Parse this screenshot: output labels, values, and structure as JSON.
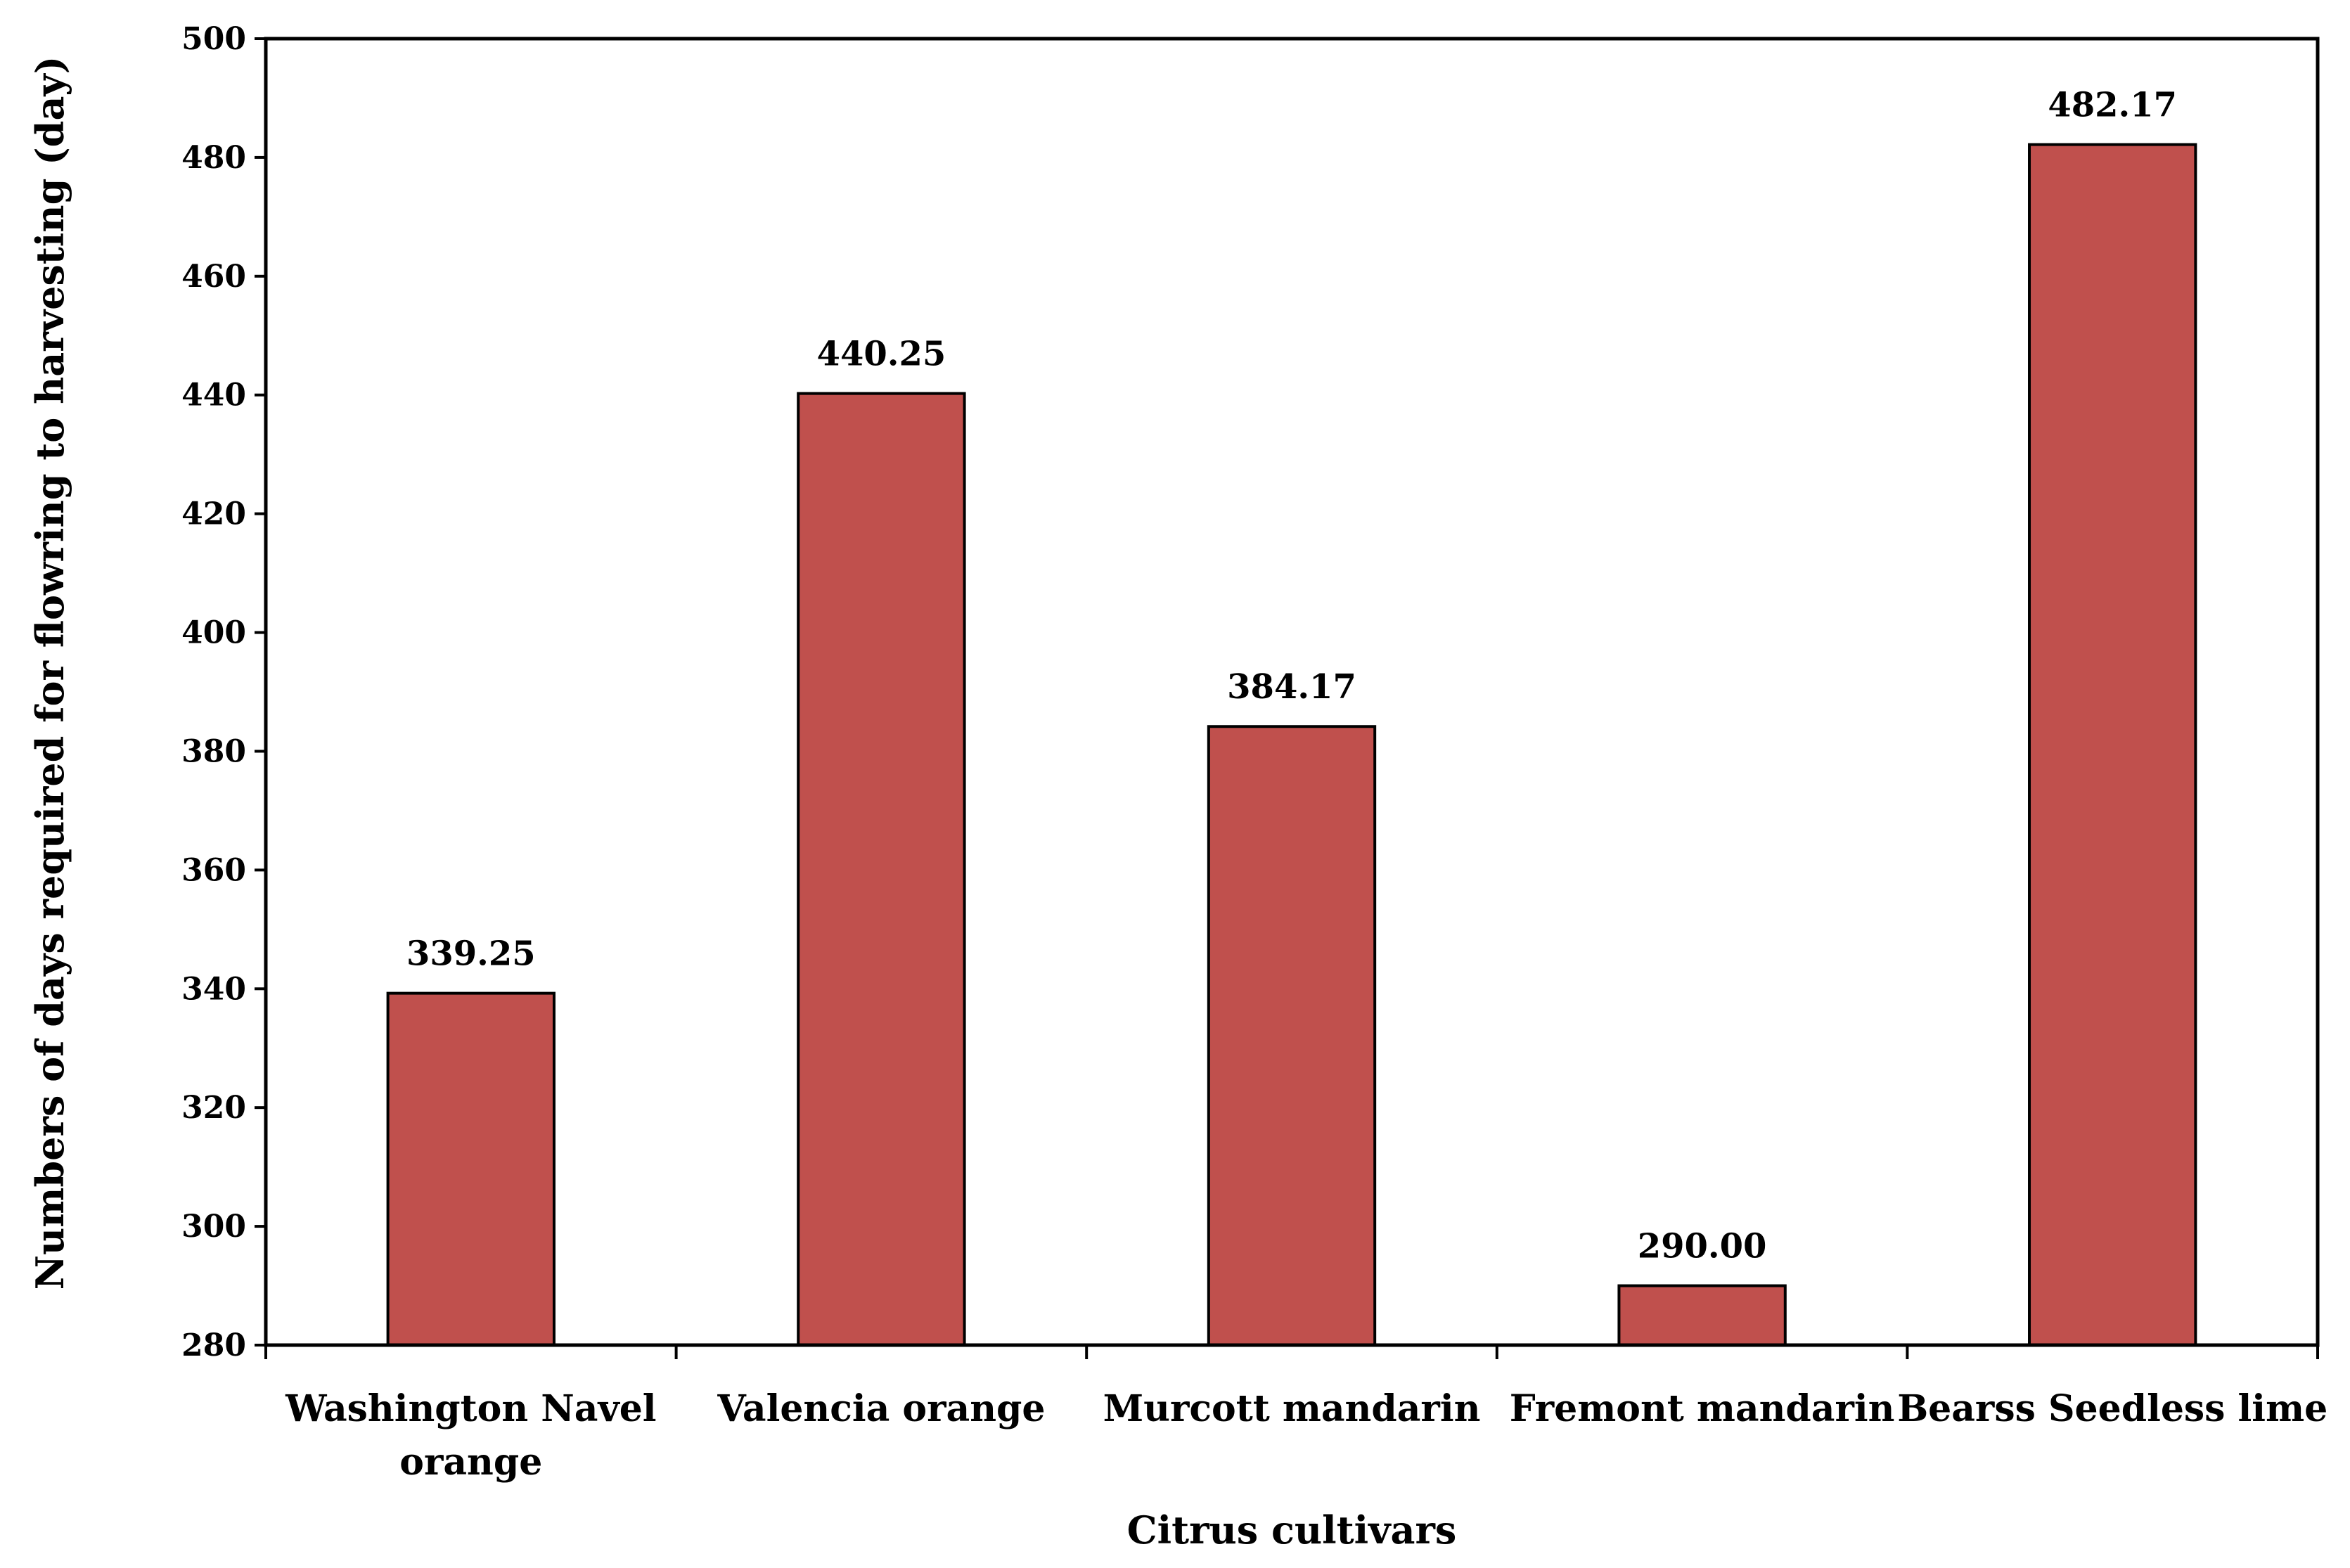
{
  "chart_data": {
    "type": "bar",
    "title": "",
    "xlabel": "Citrus  cultivars",
    "ylabel": "Numbers of days required for flowring to harvesting  (day)",
    "categories": [
      [
        "Washington Navel",
        "orange"
      ],
      [
        "Valencia orange"
      ],
      [
        "Murcott mandarin"
      ],
      [
        "Fremont  mandarin"
      ],
      [
        "Bearss Seedless lime"
      ]
    ],
    "values": [
      339.25,
      440.25,
      384.17,
      290.0,
      482.17
    ],
    "data_labels": [
      "339.25",
      "440.25",
      "384.17",
      "290.00",
      "482.17"
    ],
    "ylim": [
      280,
      500
    ],
    "yticks": [
      "280",
      "300",
      "320",
      "340",
      "360",
      "380",
      "400",
      "420",
      "440",
      "460",
      "480",
      "500"
    ],
    "grid": false,
    "legend": "none",
    "colors": {
      "bar_fill": "#c0504d",
      "bar_stroke": "#000000",
      "axis": "#000000"
    }
  }
}
